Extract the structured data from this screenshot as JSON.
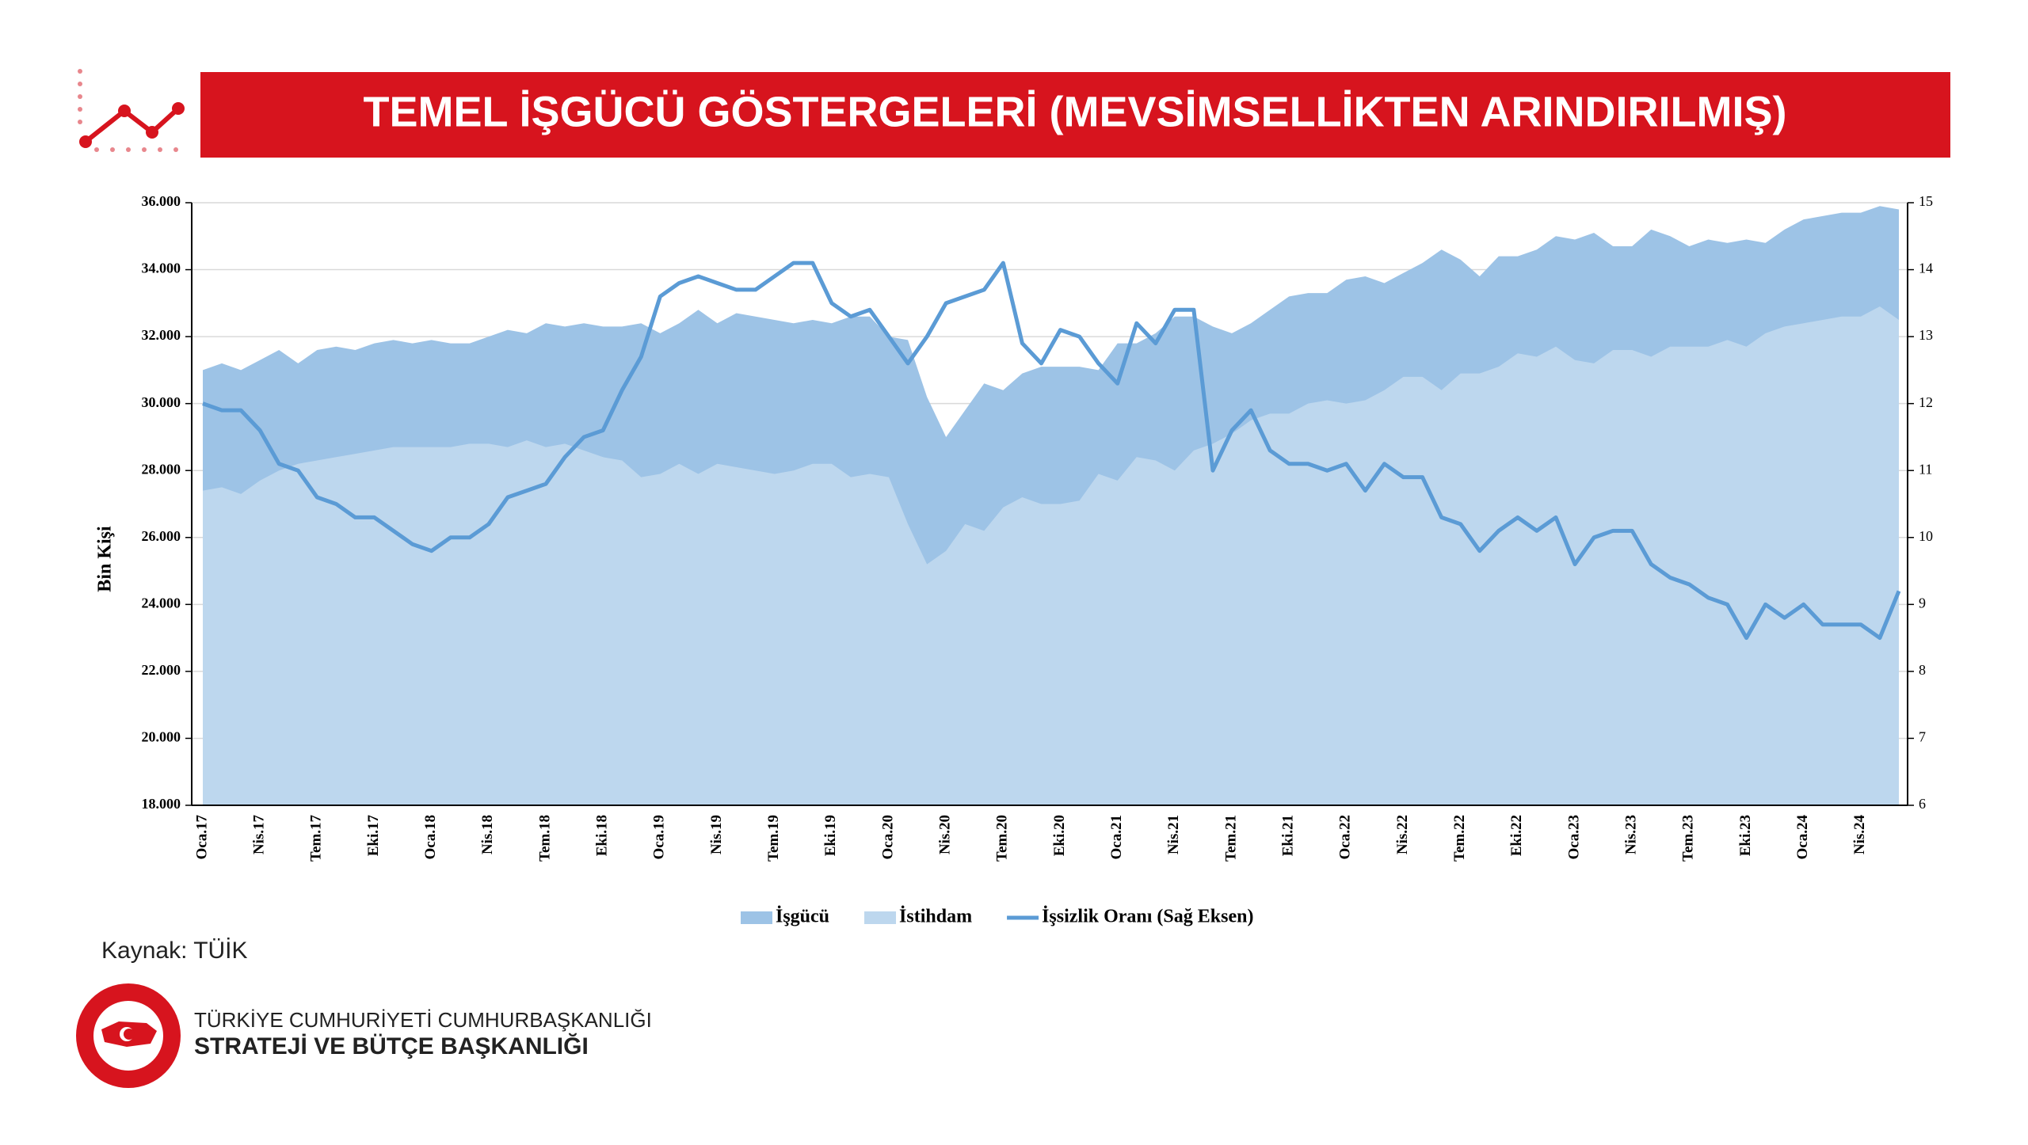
{
  "header": {
    "title": "TEMEL İŞGÜCÜ GÖSTERGELERİ (MEVSİMSELLİKTEN ARINDIRILMIŞ)"
  },
  "chart_data": {
    "type": "area",
    "y_label": "Bin Kişi",
    "categories": [
      "Oca.17",
      null,
      null,
      "Nis.17",
      null,
      null,
      "Tem.17",
      null,
      null,
      "Eki.17",
      null,
      null,
      "Oca.18",
      null,
      null,
      "Nis.18",
      null,
      null,
      "Tem.18",
      null,
      null,
      "Eki.18",
      null,
      null,
      "Oca.19",
      null,
      null,
      "Nis.19",
      null,
      null,
      "Tem.19",
      null,
      null,
      "Eki.19",
      null,
      null,
      "Oca.20",
      null,
      null,
      "Nis.20",
      null,
      null,
      "Tem.20",
      null,
      null,
      "Eki.20",
      null,
      null,
      "Oca.21",
      null,
      null,
      "Nis.21",
      null,
      null,
      "Tem.21",
      null,
      null,
      "Eki.21",
      null,
      null,
      "Oca.22",
      null,
      null,
      "Nis.22",
      null,
      null,
      "Tem.22",
      null,
      null,
      "Eki.22",
      null,
      null,
      "Oca.23",
      null,
      null,
      "Nis.23",
      null,
      null,
      "Tem.23",
      null,
      null,
      "Eki.23",
      null,
      null,
      "Oca.24",
      null,
      null,
      "Nis.24",
      null,
      null
    ],
    "series": [
      {
        "name": "İşgücü",
        "type": "area",
        "color": "#9dc3e6",
        "values": [
          31000,
          31200,
          31000,
          31300,
          31600,
          31200,
          31600,
          31700,
          31600,
          31800,
          31900,
          31800,
          31900,
          31800,
          31800,
          32000,
          32200,
          32100,
          32400,
          32300,
          32400,
          32300,
          32300,
          32400,
          32100,
          32400,
          32800,
          32400,
          32700,
          32600,
          32500,
          32400,
          32500,
          32400,
          32600,
          32600,
          32000,
          31900,
          30200,
          29000,
          29800,
          30600,
          30400,
          30900,
          31100,
          31100,
          31100,
          31000,
          31800,
          31800,
          32100,
          32600,
          32600,
          32300,
          32100,
          32400,
          32800,
          33200,
          33300,
          33300,
          33700,
          33800,
          33600,
          33900,
          34200,
          34600,
          34300,
          33800,
          34400,
          34400,
          34600,
          35000,
          34900,
          35100,
          34700,
          34700,
          35200,
          35000,
          34700,
          34900,
          34800,
          34900,
          34800,
          35200,
          35500,
          35600,
          35700,
          35700,
          35900,
          35800
        ]
      },
      {
        "name": "İstihdam",
        "type": "area",
        "color": "#bdd7ee",
        "values": [
          27400,
          27500,
          27300,
          27700,
          28000,
          28200,
          28300,
          28400,
          28500,
          28600,
          28700,
          28700,
          28700,
          28700,
          28800,
          28800,
          28700,
          28900,
          28700,
          28800,
          28600,
          28400,
          28300,
          27800,
          27900,
          28200,
          27900,
          28200,
          28100,
          28000,
          27900,
          28000,
          28200,
          28200,
          27800,
          27900,
          27800,
          26400,
          25200,
          25600,
          26400,
          26200,
          26900,
          27200,
          27000,
          27000,
          27100,
          27900,
          27700,
          28400,
          28300,
          28000,
          28600,
          28800,
          29100,
          29500,
          29700,
          29700,
          30000,
          30100,
          30000,
          30100,
          30400,
          30800,
          30800,
          30400,
          30900,
          30900,
          31100,
          31500,
          31400,
          31700,
          31300,
          31200,
          31600,
          31600,
          31400,
          31700,
          31700,
          31700,
          31900,
          31700,
          32100,
          32300,
          32400,
          32500,
          32600,
          32600,
          32900,
          32500
        ]
      },
      {
        "name": "İşsizlik Oranı (Sağ Eksen)",
        "type": "line",
        "axis": "y2",
        "color": "#5b9bd5",
        "values": [
          12.0,
          11.9,
          11.9,
          11.6,
          11.1,
          11.0,
          10.6,
          10.5,
          10.3,
          10.3,
          10.1,
          9.9,
          9.8,
          10.0,
          10.0,
          10.2,
          10.6,
          10.7,
          10.8,
          11.2,
          11.5,
          11.6,
          12.2,
          12.7,
          13.6,
          13.8,
          13.9,
          13.8,
          13.7,
          13.7,
          13.9,
          14.1,
          14.1,
          13.5,
          13.3,
          13.4,
          13.0,
          12.6,
          13.0,
          13.5,
          13.6,
          13.7,
          14.1,
          12.9,
          12.6,
          13.1,
          13.0,
          12.6,
          12.3,
          13.2,
          12.9,
          13.4,
          13.4,
          11.0,
          11.6,
          11.9,
          11.3,
          11.1,
          11.1,
          11.0,
          11.1,
          10.7,
          11.1,
          10.9,
          10.9,
          10.3,
          10.2,
          9.8,
          10.1,
          10.3,
          10.1,
          10.3,
          9.6,
          10.0,
          10.1,
          10.1,
          9.6,
          9.4,
          9.3,
          9.1,
          9.0,
          8.5,
          9.0,
          8.8,
          9.0,
          8.7,
          8.7,
          8.7,
          8.5,
          9.2
        ]
      }
    ],
    "ylim": [
      18000,
      36000
    ],
    "yticks": [
      {
        "value": 18000,
        "label": "18.000"
      },
      {
        "value": 20000,
        "label": "20.000"
      },
      {
        "value": 22000,
        "label": "22.000"
      },
      {
        "value": 24000,
        "label": "24.000"
      },
      {
        "value": 26000,
        "label": "26.000"
      },
      {
        "value": 28000,
        "label": "28.000"
      },
      {
        "value": 30000,
        "label": "30.000"
      },
      {
        "value": 32000,
        "label": "32.000"
      },
      {
        "value": 34000,
        "label": "34.000"
      },
      {
        "value": 36000,
        "label": "36.000"
      }
    ],
    "y2lim": [
      6,
      15
    ],
    "y2ticks": [
      6,
      7,
      8,
      9,
      10,
      11,
      12,
      13,
      14,
      15
    ],
    "grid": true,
    "legend": "bottom"
  },
  "source": "Kaynak: TÜİK",
  "footer": {
    "line1": "TÜRKİYE CUMHURİYETİ CUMHURBAŞKANLIĞI",
    "line2": "STRATEJİ VE BÜTÇE BAŞKANLIĞI"
  }
}
